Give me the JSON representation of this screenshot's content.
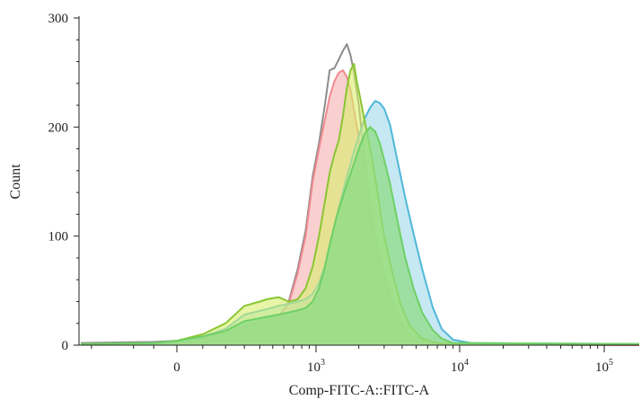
{
  "chart_data": {
    "type": "area",
    "title": "",
    "xlabel": "Comp-FITC-A::FITC-A",
    "ylabel": "Count",
    "xscale": "biexponential",
    "ylim": [
      0,
      300
    ],
    "y_ticks": [
      0,
      100,
      200,
      300
    ],
    "x_ticks": [
      {
        "value": 0,
        "label": "0",
        "base": "",
        "exp": ""
      },
      {
        "value": 1000,
        "label": "10³",
        "base": "10",
        "exp": "3"
      },
      {
        "value": 10000,
        "label": "10⁴",
        "base": "10",
        "exp": "4"
      },
      {
        "value": 100000,
        "label": "10⁵",
        "base": "10",
        "exp": "5"
      }
    ],
    "grid": false,
    "legend": "none",
    "series": [
      {
        "color": "#8c8c8c",
        "fill": "none",
        "fill_opacity": 0,
        "points": [
          [
            -2000,
            2
          ],
          [
            -100,
            3
          ],
          [
            0,
            4
          ],
          [
            100,
            6
          ],
          [
            200,
            10
          ],
          [
            300,
            18
          ],
          [
            450,
            22
          ],
          [
            550,
            26
          ],
          [
            650,
            40
          ],
          [
            750,
            70
          ],
          [
            850,
            105
          ],
          [
            950,
            155
          ],
          [
            1050,
            185
          ],
          [
            1150,
            218
          ],
          [
            1250,
            252
          ],
          [
            1350,
            254
          ],
          [
            1450,
            262
          ],
          [
            1550,
            270
          ],
          [
            1650,
            276
          ],
          [
            1750,
            266
          ],
          [
            1850,
            250
          ],
          [
            2000,
            220
          ],
          [
            2200,
            168
          ],
          [
            2500,
            112
          ],
          [
            2800,
            80
          ],
          [
            3200,
            52
          ],
          [
            3700,
            28
          ],
          [
            4300,
            12
          ],
          [
            5500,
            4
          ],
          [
            8000,
            1
          ],
          [
            200000,
            0
          ]
        ]
      },
      {
        "color": "#f08a8f",
        "fill": "#f5a7aa",
        "fill_opacity": 0.55,
        "points": [
          [
            -2000,
            1
          ],
          [
            -100,
            2
          ],
          [
            0,
            4
          ],
          [
            100,
            8
          ],
          [
            200,
            12
          ],
          [
            300,
            17
          ],
          [
            450,
            21
          ],
          [
            550,
            25
          ],
          [
            650,
            38
          ],
          [
            750,
            66
          ],
          [
            850,
            100
          ],
          [
            950,
            150
          ],
          [
            1050,
            180
          ],
          [
            1150,
            205
          ],
          [
            1250,
            228
          ],
          [
            1350,
            242
          ],
          [
            1450,
            250
          ],
          [
            1550,
            252
          ],
          [
            1650,
            246
          ],
          [
            1750,
            234
          ],
          [
            1850,
            216
          ],
          [
            2000,
            190
          ],
          [
            2200,
            150
          ],
          [
            2500,
            102
          ],
          [
            2800,
            74
          ],
          [
            3200,
            48
          ],
          [
            3700,
            26
          ],
          [
            4300,
            10
          ],
          [
            5500,
            3
          ],
          [
            8000,
            1
          ],
          [
            200000,
            0
          ]
        ]
      },
      {
        "color": "#4fb8d8",
        "fill": "#9fd8ea",
        "fill_opacity": 0.6,
        "points": [
          [
            -2000,
            1
          ],
          [
            -100,
            2
          ],
          [
            0,
            3
          ],
          [
            100,
            8
          ],
          [
            200,
            15
          ],
          [
            300,
            28
          ],
          [
            450,
            33
          ],
          [
            550,
            36
          ],
          [
            650,
            38
          ],
          [
            750,
            40
          ],
          [
            850,
            42
          ],
          [
            950,
            47
          ],
          [
            1050,
            57
          ],
          [
            1150,
            72
          ],
          [
            1250,
            92
          ],
          [
            1400,
            118
          ],
          [
            1600,
            148
          ],
          [
            1800,
            172
          ],
          [
            2000,
            192
          ],
          [
            2200,
            208
          ],
          [
            2400,
            218
          ],
          [
            2600,
            224
          ],
          [
            2800,
            222
          ],
          [
            3000,
            217
          ],
          [
            3300,
            202
          ],
          [
            3700,
            170
          ],
          [
            4200,
            135
          ],
          [
            4800,
            102
          ],
          [
            5500,
            70
          ],
          [
            6500,
            35
          ],
          [
            7500,
            15
          ],
          [
            9000,
            5
          ],
          [
            12000,
            2
          ],
          [
            200000,
            1
          ]
        ]
      },
      {
        "color": "#8ac634",
        "fill": "#d9ee6a",
        "fill_opacity": 0.6,
        "points": [
          [
            -2000,
            1
          ],
          [
            -100,
            2
          ],
          [
            0,
            4
          ],
          [
            100,
            10
          ],
          [
            200,
            20
          ],
          [
            300,
            36
          ],
          [
            400,
            40
          ],
          [
            450,
            42
          ],
          [
            550,
            44
          ],
          [
            650,
            40
          ],
          [
            750,
            42
          ],
          [
            850,
            52
          ],
          [
            950,
            72
          ],
          [
            1050,
            100
          ],
          [
            1150,
            130
          ],
          [
            1250,
            158
          ],
          [
            1350,
            175
          ],
          [
            1450,
            188
          ],
          [
            1550,
            210
          ],
          [
            1650,
            236
          ],
          [
            1750,
            252
          ],
          [
            1850,
            258
          ],
          [
            1950,
            240
          ],
          [
            2050,
            226
          ],
          [
            2200,
            205
          ],
          [
            2400,
            180
          ],
          [
            2700,
            140
          ],
          [
            3000,
            100
          ],
          [
            3400,
            68
          ],
          [
            3900,
            38
          ],
          [
            4500,
            18
          ],
          [
            5500,
            6
          ],
          [
            7000,
            2
          ],
          [
            200000,
            1
          ]
        ]
      },
      {
        "color": "#6fd066",
        "fill": "#8fdc84",
        "fill_opacity": 0.75,
        "points": [
          [
            -2000,
            1
          ],
          [
            -100,
            2
          ],
          [
            0,
            4
          ],
          [
            100,
            8
          ],
          [
            200,
            13
          ],
          [
            300,
            22
          ],
          [
            450,
            26
          ],
          [
            550,
            28
          ],
          [
            650,
            30
          ],
          [
            750,
            32
          ],
          [
            850,
            34
          ],
          [
            950,
            40
          ],
          [
            1050,
            52
          ],
          [
            1150,
            70
          ],
          [
            1250,
            92
          ],
          [
            1400,
            118
          ],
          [
            1600,
            142
          ],
          [
            1800,
            162
          ],
          [
            2000,
            180
          ],
          [
            2200,
            194
          ],
          [
            2400,
            200
          ],
          [
            2600,
            196
          ],
          [
            2800,
            185
          ],
          [
            3000,
            170
          ],
          [
            3300,
            148
          ],
          [
            3700,
            115
          ],
          [
            4200,
            80
          ],
          [
            4800,
            52
          ],
          [
            5500,
            30
          ],
          [
            6500,
            14
          ],
          [
            7500,
            6
          ],
          [
            9000,
            2
          ],
          [
            200000,
            1
          ]
        ]
      }
    ]
  }
}
